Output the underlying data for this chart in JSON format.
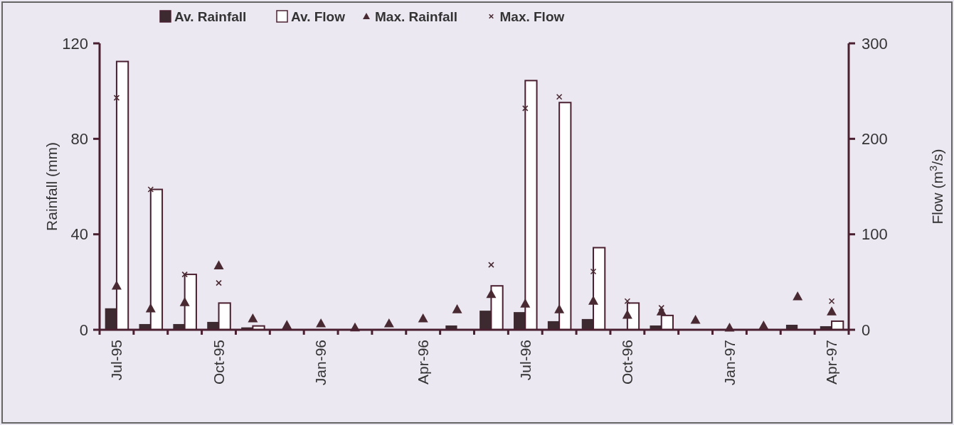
{
  "chart_data": {
    "type": "bar",
    "categories": [
      "Jul-95",
      null,
      null,
      "Oct-95",
      null,
      null,
      "Jan-96",
      null,
      null,
      "Apr-96",
      null,
      null,
      "Jul-96",
      null,
      null,
      "Oct-96",
      null,
      null,
      "Jan-97",
      null,
      null,
      "Apr-97"
    ],
    "ylabel": "Rainfall (mm)",
    "y2label": "Flow (m$^{3}$/s)",
    "ylim": [
      0,
      120
    ],
    "yticks": [
      0,
      40,
      80,
      120
    ],
    "y2lim": [
      0,
      300
    ],
    "y2ticks": [
      0,
      100,
      200,
      300
    ],
    "legend": "top",
    "grid": false,
    "series": [
      {
        "name": "Av. Rainfall",
        "color": "#3d2a30",
        "values": [
          9,
          2.4,
          2.4,
          3.3,
          1,
          null,
          null,
          0.3,
          0.3,
          0.3,
          1.8,
          8,
          7.4,
          3.6,
          4.5,
          null,
          1.8,
          0.3,
          0.3,
          0.3,
          2.1,
          1.5
        ]
      },
      {
        "name": "Av. Flow",
        "axis": "y2",
        "color": "#ffffff",
        "values": [
          281,
          147,
          58,
          28,
          4,
          0,
          0,
          0,
          0,
          0,
          0,
          46,
          261,
          238,
          86,
          28,
          15,
          0,
          0,
          0,
          0,
          9
        ]
      },
      {
        "name": "Max. Rainfall",
        "type": "scatter",
        "marker": "triangle",
        "color": "#4a2a32",
        "values": [
          18.5,
          9,
          11.6,
          27,
          4.8,
          2,
          2.7,
          1,
          2.7,
          4.8,
          8.6,
          15,
          11,
          8.6,
          12.2,
          6.3,
          7.7,
          4.2,
          0.9,
          1.8,
          14,
          7.7
        ]
      },
      {
        "name": "Max. Flow",
        "type": "scatter",
        "marker": "cross",
        "axis": "y2",
        "color": "#4a2a32",
        "values": [
          243,
          147,
          58,
          49,
          null,
          null,
          null,
          null,
          null,
          null,
          null,
          68,
          232,
          244,
          61,
          30,
          23,
          null,
          null,
          null,
          null,
          30
        ]
      }
    ]
  }
}
